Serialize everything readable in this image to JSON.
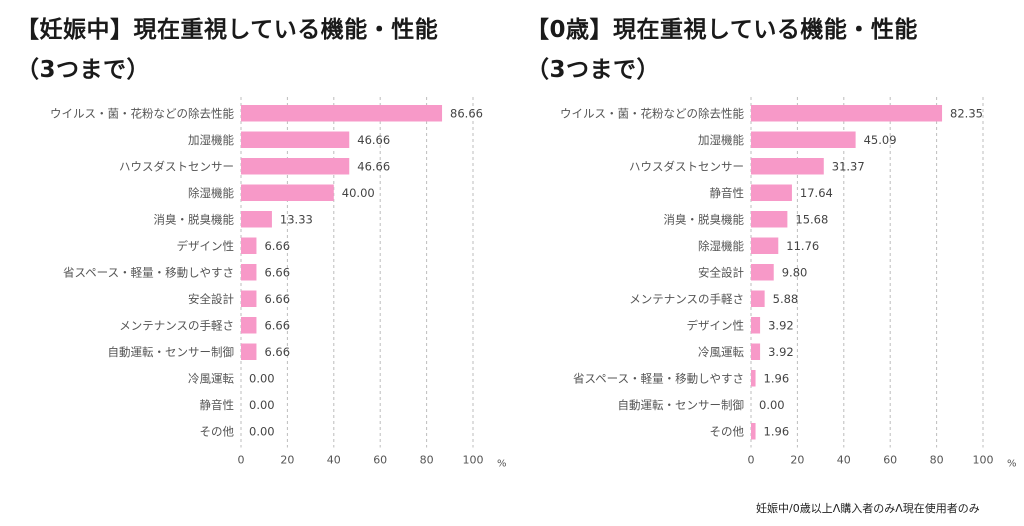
{
  "chart_data": [
    {
      "type": "bar",
      "orientation": "horizontal",
      "title": "【妊娠中】現在重視している機能・性能",
      "subtitle": "（3つまで）",
      "categories": [
        "ウイルス・菌・花粉などの除去性能",
        "加湿機能",
        "ハウスダストセンサー",
        "除湿機能",
        "消臭・脱臭機能",
        "デザイン性",
        "省スペース・軽量・移動しやすさ",
        "安全設計",
        "メンテナンスの手軽さ",
        "自動運転・センサー制御",
        "冷風運転",
        "静音性",
        "その他"
      ],
      "values": [
        86.66,
        46.66,
        46.66,
        40.0,
        13.33,
        6.66,
        6.66,
        6.66,
        6.66,
        6.66,
        0.0,
        0.0,
        0.0
      ],
      "value_labels": [
        "86.66",
        "46.66",
        "46.66",
        "40.00",
        "13.33",
        "6.66",
        "6.66",
        "6.66",
        "6.66",
        "6.66",
        "0.00",
        "0.00",
        "0.00"
      ],
      "xlim": [
        0,
        100
      ],
      "xticks": [
        "0",
        "20",
        "40",
        "60",
        "80",
        "100"
      ],
      "xunit": "%",
      "grid": "vertical dashed",
      "bar_color": "#f799c8"
    },
    {
      "type": "bar",
      "orientation": "horizontal",
      "title": "【0歳】現在重視している機能・性能",
      "subtitle": "（3つまで）",
      "categories": [
        "ウイルス・菌・花粉などの除去性能",
        "加湿機能",
        "ハウスダストセンサー",
        "静音性",
        "消臭・脱臭機能",
        "除湿機能",
        "安全設計",
        "メンテナンスの手軽さ",
        "デザイン性",
        "冷風運転",
        "省スペース・軽量・移動しやすさ",
        "自動運転・センサー制御",
        "その他"
      ],
      "values": [
        82.35,
        45.09,
        31.37,
        17.64,
        15.68,
        11.76,
        9.8,
        5.88,
        3.92,
        3.92,
        1.96,
        0.0,
        1.96
      ],
      "value_labels": [
        "82.35",
        "45.09",
        "31.37",
        "17.64",
        "15.68",
        "11.76",
        "9.80",
        "5.88",
        "3.92",
        "3.92",
        "1.96",
        "0.00",
        "1.96"
      ],
      "xlim": [
        0,
        100
      ],
      "xticks": [
        "0",
        "20",
        "40",
        "60",
        "80",
        "100"
      ],
      "xunit": "%",
      "grid": "vertical dashed",
      "bar_color": "#f799c8"
    }
  ],
  "footnote": "妊娠中/0歳以上Λ購入者のみΛ現在使用者のみ"
}
